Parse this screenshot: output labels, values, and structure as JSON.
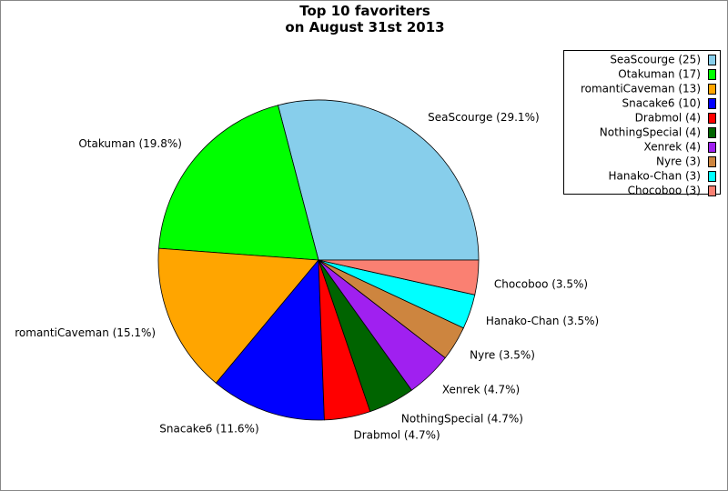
{
  "chart_data": {
    "type": "pie",
    "title": "Top 10 favoriters\non August 31st 2013",
    "categories": [
      "SeaScourge (25)",
      "Otakuman (17)",
      "romantiCaveman (13)",
      "Snacake6 (10)",
      "Drabmol (4)",
      "NothingSpecial (4)",
      "Xenrek (4)",
      "Nyre (3)",
      "Hanako-Chan (3)",
      "Chocoboo (3)"
    ],
    "values": [
      25,
      17,
      13,
      10,
      4,
      4,
      4,
      3,
      3,
      3
    ],
    "value_labels": [
      "SeaScourge (29.1%)",
      "Otakuman (19.8%)",
      "romantiCaveman (15.1%)",
      "Snacake6 (11.6%)",
      "Drabmol (4.7%)",
      "NothingSpecial (4.7%)",
      "Xenrek (4.7%)",
      "Nyre (3.5%)",
      "Hanako-Chan (3.5%)",
      "Chocoboo (3.5%)"
    ],
    "colors": [
      "#87ceeb",
      "#00ff00",
      "#ffa500",
      "#0000ff",
      "#ff0000",
      "#006400",
      "#a020f0",
      "#cd853f",
      "#00ffff",
      "#fa8072"
    ],
    "legend": "upper right"
  }
}
